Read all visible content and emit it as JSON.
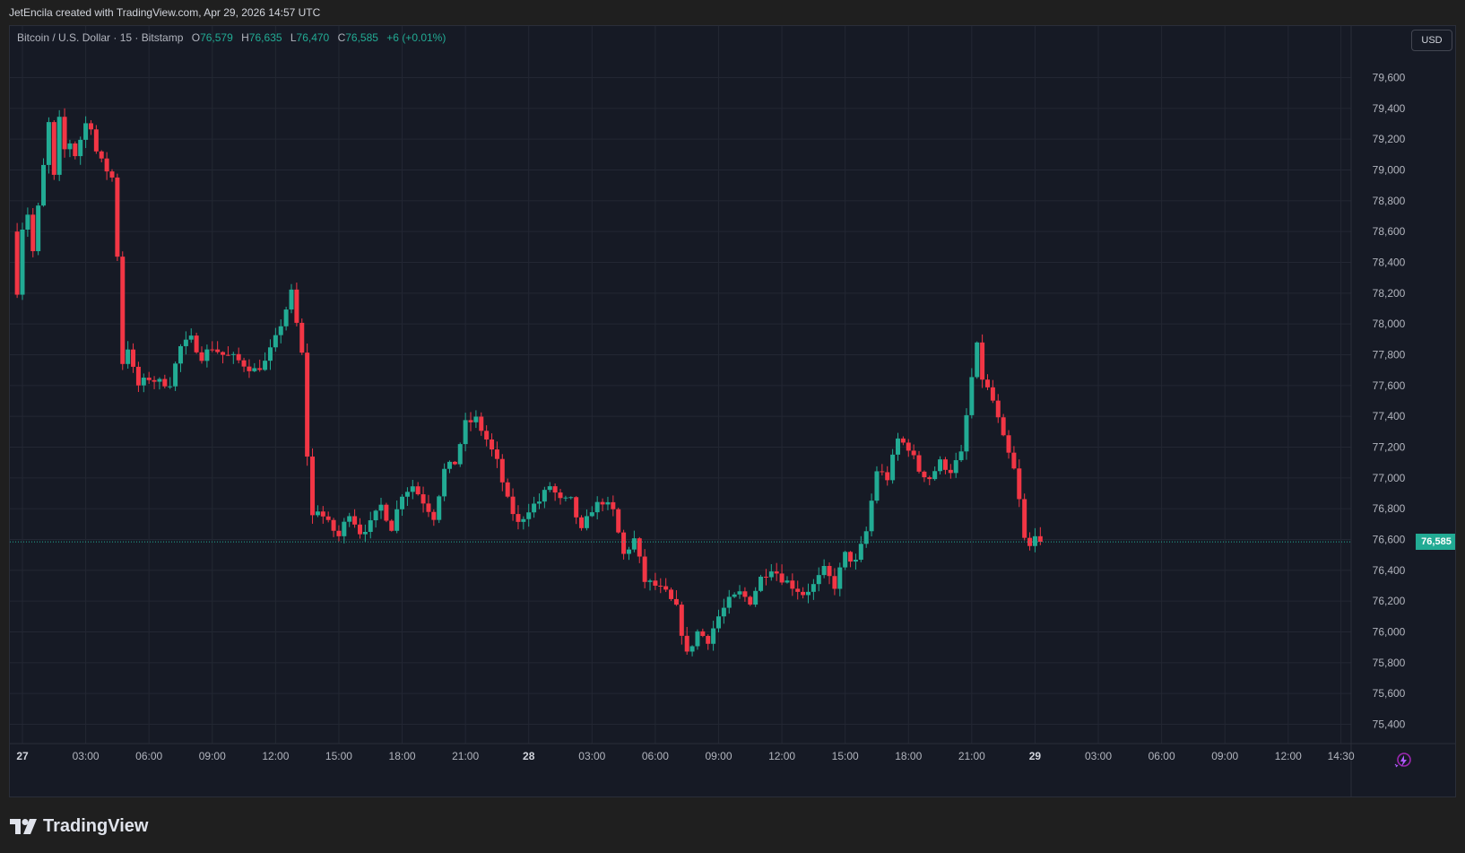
{
  "caption": "JetEncila created with TradingView.com, Apr 29, 2026 14:57 UTC",
  "legend": {
    "symbol": "Bitcoin / U.S. Dollar · 15 · Bitstamp",
    "open_label": "O",
    "open": "76,579",
    "high_label": "H",
    "high": "76,635",
    "low_label": "L",
    "low": "76,470",
    "close_label": "C",
    "close": "76,585",
    "change": "+6 (+0.01%)"
  },
  "currency_button": "USD",
  "last_price_label": "76,585",
  "brand": "TradingView",
  "icons": {
    "brand_logo": "tradingview-logo-icon",
    "bolt": "lightning-bolt-icon"
  },
  "colors": {
    "up": "#22ab94",
    "down": "#f23645",
    "background": "#161a25",
    "grid": "#232733"
  },
  "chart_data": {
    "type": "candlestick",
    "title": "Bitcoin / U.S. Dollar · 15 · Bitstamp",
    "interval": "15",
    "ylim": [
      75300,
      79750
    ],
    "yticks": [
      "79,600",
      "79,400",
      "79,200",
      "79,000",
      "78,800",
      "78,600",
      "78,400",
      "78,200",
      "78,000",
      "77,800",
      "77,600",
      "77,400",
      "77,200",
      "77,000",
      "76,800",
      "76,600",
      "76,400",
      "76,200",
      "76,000",
      "75,800",
      "75,600",
      "75,400"
    ],
    "xticks": [
      "27",
      "03:00",
      "06:00",
      "09:00",
      "12:00",
      "15:00",
      "18:00",
      "21:00",
      "28",
      "03:00",
      "06:00",
      "09:00",
      "12:00",
      "15:00",
      "18:00",
      "21:00",
      "29",
      "03:00",
      "06:00",
      "09:00",
      "12:00",
      "14:30"
    ],
    "xtick_hours": [
      0,
      3,
      6,
      9,
      12,
      15,
      18,
      21,
      24,
      27,
      30,
      33,
      36,
      39,
      42,
      45,
      48,
      51,
      54,
      57,
      60,
      62.5
    ],
    "last_price": 76585,
    "close_anchors": [
      [
        -0.5,
        78600
      ],
      [
        -0.25,
        78220
      ],
      [
        0,
        78630
      ],
      [
        0.25,
        78720
      ],
      [
        0.5,
        78470
      ],
      [
        0.75,
        78750
      ],
      [
        1,
        79020
      ],
      [
        1.25,
        79300
      ],
      [
        1.5,
        78950
      ],
      [
        1.75,
        79320
      ],
      [
        2,
        79130
      ],
      [
        2.25,
        79180
      ],
      [
        2.5,
        79100
      ],
      [
        3,
        79300
      ],
      [
        3.25,
        79290
      ],
      [
        3.5,
        79120
      ],
      [
        3.75,
        79050
      ],
      [
        4.25,
        78950
      ],
      [
        4.5,
        78450
      ],
      [
        4.75,
        77750
      ],
      [
        5,
        77850
      ],
      [
        5.25,
        77700
      ],
      [
        5.5,
        77600
      ],
      [
        6,
        77650
      ],
      [
        6.5,
        77620
      ],
      [
        7,
        77620
      ],
      [
        7.5,
        77850
      ],
      [
        8,
        77900
      ],
      [
        8.5,
        77790
      ],
      [
        9,
        77850
      ],
      [
        9.5,
        77800
      ],
      [
        10,
        77780
      ],
      [
        11,
        77700
      ],
      [
        11.5,
        77750
      ],
      [
        12,
        77900
      ],
      [
        12.75,
        78200
      ],
      [
        13.25,
        77800
      ],
      [
        13.5,
        77150
      ],
      [
        13.75,
        76750
      ],
      [
        14,
        76800
      ],
      [
        14.5,
        76700
      ],
      [
        15,
        76620
      ],
      [
        15.5,
        76780
      ],
      [
        16,
        76650
      ],
      [
        16.5,
        76700
      ],
      [
        17,
        76820
      ],
      [
        17.5,
        76680
      ],
      [
        18,
        76900
      ],
      [
        18.5,
        76950
      ],
      [
        19,
        76850
      ],
      [
        19.5,
        76750
      ],
      [
        20,
        77050
      ],
      [
        20.5,
        77100
      ],
      [
        21,
        77350
      ],
      [
        21.5,
        77380
      ],
      [
        22,
        77250
      ],
      [
        22.5,
        77100
      ],
      [
        23,
        76850
      ],
      [
        23.5,
        76700
      ],
      [
        24,
        76800
      ],
      [
        24.5,
        76850
      ],
      [
        25,
        76950
      ],
      [
        25.5,
        76850
      ],
      [
        26,
        76850
      ],
      [
        26.5,
        76650
      ],
      [
        27,
        76800
      ],
      [
        27.5,
        76850
      ],
      [
        28,
        76780
      ],
      [
        28.5,
        76500
      ],
      [
        29,
        76600
      ],
      [
        29.5,
        76330
      ],
      [
        30,
        76300
      ],
      [
        30.5,
        76250
      ],
      [
        31,
        76150
      ],
      [
        31.5,
        75850
      ],
      [
        32,
        76000
      ],
      [
        32.5,
        75950
      ],
      [
        33,
        76100
      ],
      [
        33.5,
        76200
      ],
      [
        34,
        76250
      ],
      [
        34.5,
        76200
      ],
      [
        35,
        76350
      ],
      [
        35.5,
        76420
      ],
      [
        36,
        76350
      ],
      [
        36.5,
        76300
      ],
      [
        37,
        76250
      ],
      [
        37.5,
        76300
      ],
      [
        38,
        76400
      ],
      [
        38.5,
        76300
      ],
      [
        39,
        76500
      ],
      [
        39.5,
        76450
      ],
      [
        40,
        76650
      ],
      [
        40.5,
        77050
      ],
      [
        41,
        77000
      ],
      [
        41.5,
        77250
      ],
      [
        42,
        77200
      ],
      [
        42.5,
        77050
      ],
      [
        43,
        77000
      ],
      [
        43.5,
        77100
      ],
      [
        44,
        77050
      ],
      [
        44.5,
        77150
      ],
      [
        45,
        77650
      ],
      [
        45.25,
        77850
      ],
      [
        45.5,
        77650
      ],
      [
        46,
        77500
      ],
      [
        46.5,
        77250
      ],
      [
        47,
        77050
      ],
      [
        47.25,
        76850
      ],
      [
        47.5,
        76600
      ],
      [
        47.75,
        76550
      ],
      [
        48,
        76650
      ],
      [
        48.25,
        76585
      ]
    ]
  }
}
